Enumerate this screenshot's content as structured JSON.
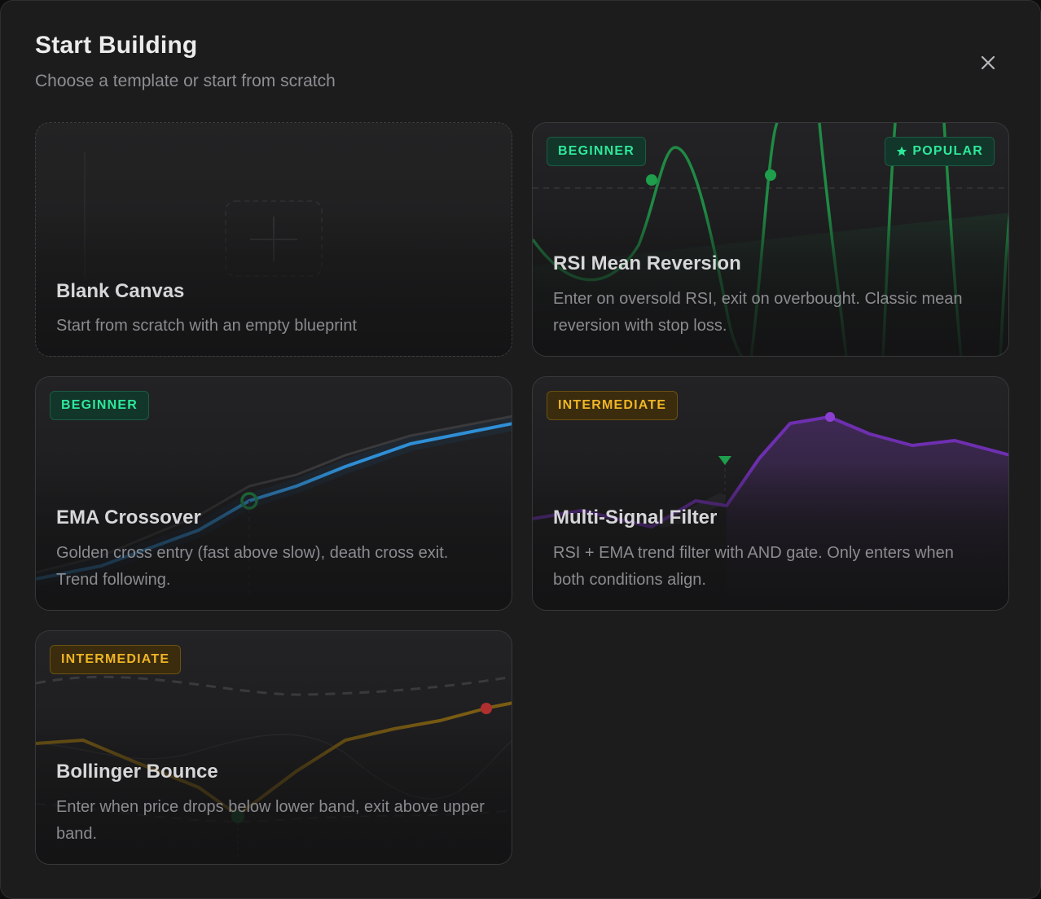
{
  "dialog": {
    "title": "Start Building",
    "subtitle": "Choose a template or start from scratch",
    "close_icon": "close-icon"
  },
  "templates": [
    {
      "id": "blank",
      "title": "Blank Canvas",
      "description": "Start from scratch with an empty blueprint"
    },
    {
      "id": "rsi",
      "badge": "BEGINNER",
      "popular": "POPULAR",
      "title": "RSI Mean Reversion",
      "description": "Enter on oversold RSI, exit on overbought. Classic mean reversion with stop loss.",
      "accent": "#22c55e"
    },
    {
      "id": "ema",
      "badge": "BEGINNER",
      "title": "EMA Crossover",
      "description": "Golden cross entry (fast above slow), death cross exit. Trend following.",
      "accent": "#2f8fd6"
    },
    {
      "id": "multi",
      "badge": "INTERMEDIATE",
      "title": "Multi-Signal Filter",
      "description": "RSI + EMA trend filter with AND gate. Only enters when both conditions align.",
      "accent": "#8b3fd1"
    },
    {
      "id": "bollinger",
      "badge": "INTERMEDIATE",
      "title": "Bollinger Bounce",
      "description": "Enter when price drops below lower band, exit above upper band.",
      "accent": "#c99a17"
    }
  ]
}
